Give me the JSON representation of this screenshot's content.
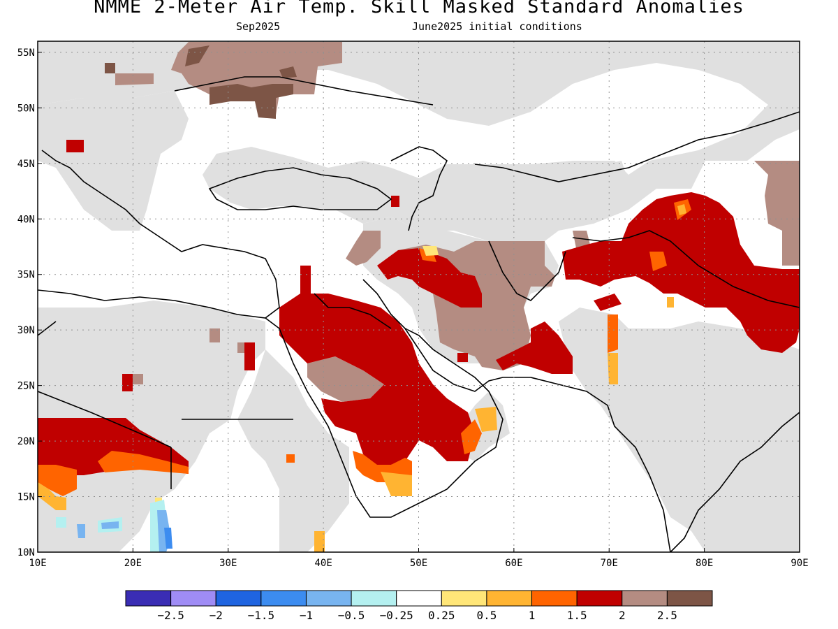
{
  "title": "NMME 2-Meter Air Temp. Skill Masked Standard Anomalies",
  "subtitle_left": "Sep2025",
  "subtitle_right": "June2025 initial conditions",
  "map": {
    "lon_range": [
      10,
      90
    ],
    "lat_range": [
      10,
      56
    ],
    "x_ticks": [
      "10E",
      "20E",
      "30E",
      "40E",
      "50E",
      "60E",
      "70E",
      "80E",
      "90E"
    ],
    "y_ticks": [
      "10N",
      "15N",
      "20N",
      "25N",
      "30N",
      "35N",
      "40N",
      "45N",
      "50N",
      "55N"
    ],
    "grid": true,
    "masked_color": "#e0e0e0",
    "ocean_color": "#ffffff"
  },
  "colorbar": {
    "colors": [
      "#3a2db4",
      "#9f8cf5",
      "#1f64e0",
      "#3c8cf0",
      "#78b4f0",
      "#b4f0f0",
      "#ffffff",
      "#ffe678",
      "#ffb432",
      "#ff6400",
      "#c00000",
      "#b48c82",
      "#7d5546"
    ],
    "labels": [
      "−2.5",
      "−2",
      "−1.5",
      "−1",
      "−0.5",
      "−0.25",
      "0.25",
      "0.5",
      "1",
      "1.5",
      "2",
      "2.5"
    ]
  }
}
